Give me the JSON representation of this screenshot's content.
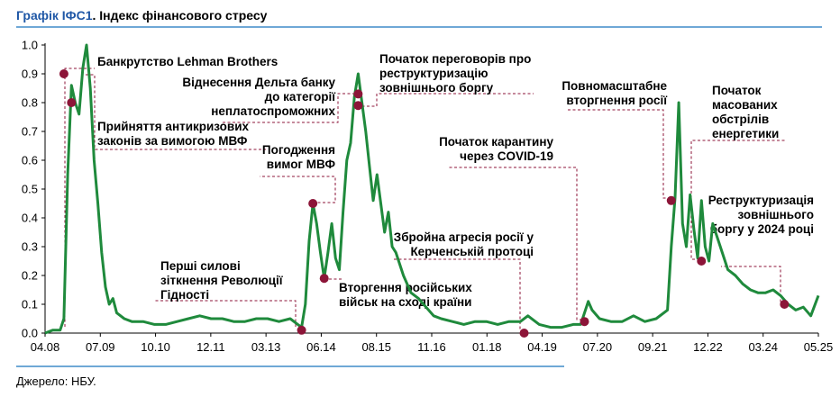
{
  "header": {
    "label": "Графік ІФС1",
    "separator": ". ",
    "text": "Індекс фінансового стресу"
  },
  "footer": {
    "source": "Джерело: НБУ."
  },
  "colors": {
    "line": "#1f8a3c",
    "marker": "#8c1538",
    "guide": "#8c1538",
    "accent": "#1f57a6",
    "rule": "#6fa8d6"
  },
  "chart_data": {
    "type": "line",
    "title": "Індекс фінансового стресу",
    "xlabel": "",
    "ylabel": "",
    "ylim": [
      0,
      1
    ],
    "yticks": [
      "0.0",
      "0.1",
      "0.2",
      "0.3",
      "0.4",
      "0.5",
      "0.6",
      "0.7",
      "0.8",
      "0.9",
      "1.0"
    ],
    "xlim": [
      "2008-04",
      "2025-05"
    ],
    "xticks": [
      "04.08",
      "07.09",
      "10.10",
      "12.11",
      "03.13",
      "06.14",
      "08.15",
      "11.16",
      "01.18",
      "04.19",
      "07.20",
      "09.21",
      "12.22",
      "03.24",
      "05.25"
    ],
    "grid": false,
    "series": [
      {
        "name": "",
        "points": [
          [
            "2008-04",
            0.0
          ],
          [
            "2008-06",
            0.01
          ],
          [
            "2008-08",
            0.01
          ],
          [
            "2008-09",
            0.05
          ],
          [
            "2008-10",
            0.55
          ],
          [
            "2008-11",
            0.86
          ],
          [
            "2008-12",
            0.8
          ],
          [
            "2009-01",
            0.76
          ],
          [
            "2009-02",
            0.92
          ],
          [
            "2009-03",
            1.0
          ],
          [
            "2009-04",
            0.85
          ],
          [
            "2009-05",
            0.6
          ],
          [
            "2009-06",
            0.45
          ],
          [
            "2009-07",
            0.28
          ],
          [
            "2009-08",
            0.16
          ],
          [
            "2009-09",
            0.1
          ],
          [
            "2009-10",
            0.12
          ],
          [
            "2009-11",
            0.07
          ],
          [
            "2010-01",
            0.05
          ],
          [
            "2010-03",
            0.04
          ],
          [
            "2010-06",
            0.04
          ],
          [
            "2010-09",
            0.03
          ],
          [
            "2010-12",
            0.03
          ],
          [
            "2011-03",
            0.04
          ],
          [
            "2011-06",
            0.05
          ],
          [
            "2011-09",
            0.06
          ],
          [
            "2011-12",
            0.05
          ],
          [
            "2012-03",
            0.05
          ],
          [
            "2012-06",
            0.04
          ],
          [
            "2012-09",
            0.04
          ],
          [
            "2012-12",
            0.05
          ],
          [
            "2013-03",
            0.05
          ],
          [
            "2013-06",
            0.04
          ],
          [
            "2013-09",
            0.05
          ],
          [
            "2013-11",
            0.03
          ],
          [
            "2013-12",
            0.02
          ],
          [
            "2014-01",
            0.1
          ],
          [
            "2014-02",
            0.32
          ],
          [
            "2014-03",
            0.45
          ],
          [
            "2014-04",
            0.38
          ],
          [
            "2014-05",
            0.28
          ],
          [
            "2014-06",
            0.19
          ],
          [
            "2014-07",
            0.28
          ],
          [
            "2014-08",
            0.38
          ],
          [
            "2014-09",
            0.26
          ],
          [
            "2014-10",
            0.22
          ],
          [
            "2014-11",
            0.42
          ],
          [
            "2014-12",
            0.6
          ],
          [
            "2015-01",
            0.66
          ],
          [
            "2015-02",
            0.82
          ],
          [
            "2015-03",
            0.9
          ],
          [
            "2015-04",
            0.8
          ],
          [
            "2015-05",
            0.7
          ],
          [
            "2015-06",
            0.58
          ],
          [
            "2015-07",
            0.46
          ],
          [
            "2015-08",
            0.55
          ],
          [
            "2015-09",
            0.45
          ],
          [
            "2015-10",
            0.35
          ],
          [
            "2015-11",
            0.42
          ],
          [
            "2015-12",
            0.3
          ],
          [
            "2016-01",
            0.28
          ],
          [
            "2016-03",
            0.2
          ],
          [
            "2016-05",
            0.14
          ],
          [
            "2016-07",
            0.12
          ],
          [
            "2016-09",
            0.09
          ],
          [
            "2016-11",
            0.06
          ],
          [
            "2017-01",
            0.05
          ],
          [
            "2017-04",
            0.04
          ],
          [
            "2017-07",
            0.03
          ],
          [
            "2017-10",
            0.04
          ],
          [
            "2018-01",
            0.04
          ],
          [
            "2018-04",
            0.03
          ],
          [
            "2018-07",
            0.04
          ],
          [
            "2018-10",
            0.04
          ],
          [
            "2018-12",
            0.06
          ],
          [
            "2019-03",
            0.03
          ],
          [
            "2019-06",
            0.02
          ],
          [
            "2019-09",
            0.02
          ],
          [
            "2019-12",
            0.03
          ],
          [
            "2020-02",
            0.03
          ],
          [
            "2020-03",
            0.07
          ],
          [
            "2020-04",
            0.11
          ],
          [
            "2020-05",
            0.08
          ],
          [
            "2020-07",
            0.05
          ],
          [
            "2020-10",
            0.04
          ],
          [
            "2021-01",
            0.04
          ],
          [
            "2021-04",
            0.06
          ],
          [
            "2021-07",
            0.04
          ],
          [
            "2021-10",
            0.05
          ],
          [
            "2022-01",
            0.08
          ],
          [
            "2022-02",
            0.3
          ],
          [
            "2022-03",
            0.47
          ],
          [
            "2022-04",
            0.8
          ],
          [
            "2022-05",
            0.38
          ],
          [
            "2022-06",
            0.3
          ],
          [
            "2022-07",
            0.48
          ],
          [
            "2022-08",
            0.36
          ],
          [
            "2022-09",
            0.26
          ],
          [
            "2022-10",
            0.46
          ],
          [
            "2022-11",
            0.3
          ],
          [
            "2022-12",
            0.25
          ],
          [
            "2023-01",
            0.38
          ],
          [
            "2023-03",
            0.3
          ],
          [
            "2023-05",
            0.22
          ],
          [
            "2023-07",
            0.2
          ],
          [
            "2023-09",
            0.17
          ],
          [
            "2023-11",
            0.15
          ],
          [
            "2024-01",
            0.14
          ],
          [
            "2024-03",
            0.14
          ],
          [
            "2024-05",
            0.15
          ],
          [
            "2024-07",
            0.13
          ],
          [
            "2024-09",
            0.1
          ],
          [
            "2024-11",
            0.08
          ],
          [
            "2025-01",
            0.09
          ],
          [
            "2025-03",
            0.06
          ],
          [
            "2025-05",
            0.13
          ]
        ]
      }
    ],
    "annotations": [
      {
        "lines": [
          "Банкрутство Lehman Brothers"
        ],
        "x": "2008-09",
        "y": 0.9,
        "anchor": "start"
      },
      {
        "lines": [
          "Прийняття антикризових",
          "законів за вимогою МВФ"
        ],
        "x": "2008-11",
        "y": 0.8,
        "anchor": "start"
      },
      {
        "lines": [
          "Перші силові",
          "зіткнення Революції",
          "Гідності"
        ],
        "x": "2013-12",
        "y": 0.01,
        "anchor": "start"
      },
      {
        "lines": [
          "Погодження",
          "вимог МВФ"
        ],
        "x": "2014-03",
        "y": 0.45,
        "anchor": "end"
      },
      {
        "lines": [
          "Вторгення російських",
          "військ на сході країни"
        ],
        "x": "2014-06",
        "y": 0.19,
        "anchor": "start"
      },
      {
        "lines": [
          "Віднесення Дельта банку",
          "до категорії",
          "неплатоспроможних"
        ],
        "x": "2015-03",
        "y": 0.83,
        "anchor": "end"
      },
      {
        "lines": [
          "Початок переговорів про",
          "реструктуризацію",
          "зовнішнього боргу"
        ],
        "x": "2015-03",
        "y": 0.79,
        "anchor": "start"
      },
      {
        "lines": [
          "Збройна агресія росії у",
          "Керченській протоці"
        ],
        "x": "2018-11",
        "y": 0.0,
        "anchor": "end"
      },
      {
        "lines": [
          "Початок карантину",
          "через COVID-19"
        ],
        "x": "2020-03",
        "y": 0.04,
        "anchor": "end"
      },
      {
        "lines": [
          "Повномасштабне",
          "вторгнення росії"
        ],
        "x": "2022-02",
        "y": 0.46,
        "anchor": "end"
      },
      {
        "lines": [
          "Початок",
          "масованих",
          "обстрілів",
          "енергетики"
        ],
        "x": "2022-10",
        "y": 0.25,
        "anchor": "start"
      },
      {
        "lines": [
          "Реструктуризація",
          "зовнішнього",
          "боргу у 2024 році"
        ],
        "x": "2024-08",
        "y": 0.1,
        "anchor": "end"
      }
    ]
  }
}
